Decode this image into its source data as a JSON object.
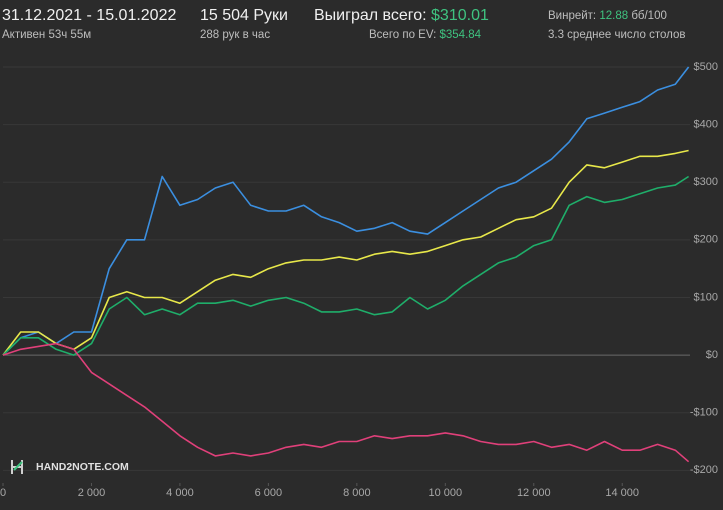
{
  "header": {
    "period": "31.12.2021 - 15.01.2022",
    "active": "Активен 53ч 55м",
    "hands": "15 504 Руки",
    "hands_per_hour": "288 рук в час",
    "won_label": "Выиграл всего:",
    "won_value": "$310.01",
    "ev_label": "Всего по EV:",
    "ev_value": "$354.84",
    "winrate_label": "Винрейт:",
    "winrate_value": "12.88",
    "winrate_unit": "бб/100",
    "tables": "3.3 среднее число столов",
    "logo": "HAND2NOTE.COM"
  },
  "chart_data": {
    "type": "line",
    "x": [
      0,
      400,
      800,
      1200,
      1600,
      2000,
      2400,
      2800,
      3200,
      3600,
      4000,
      4400,
      4800,
      5200,
      5600,
      6000,
      6400,
      6800,
      7200,
      7600,
      8000,
      8400,
      8800,
      9200,
      9600,
      10000,
      10400,
      10800,
      11200,
      11600,
      12000,
      12400,
      12800,
      13200,
      13600,
      14000,
      14400,
      14800,
      15200,
      15500
    ],
    "series": [
      {
        "color": "#3b8fe0",
        "values": [
          0,
          30,
          40,
          20,
          40,
          40,
          150,
          200,
          200,
          310,
          260,
          270,
          290,
          300,
          260,
          250,
          250,
          260,
          240,
          230,
          215,
          220,
          230,
          215,
          210,
          230,
          250,
          270,
          290,
          300,
          320,
          340,
          370,
          410,
          420,
          430,
          440,
          460,
          470,
          500
        ]
      },
      {
        "color": "#e8e84a",
        "values": [
          0,
          40,
          40,
          20,
          10,
          30,
          100,
          110,
          100,
          100,
          90,
          110,
          130,
          140,
          135,
          150,
          160,
          165,
          165,
          170,
          165,
          175,
          180,
          175,
          180,
          190,
          200,
          205,
          220,
          235,
          240,
          255,
          300,
          330,
          325,
          335,
          345,
          345,
          350,
          355
        ]
      },
      {
        "color": "#1fae6a",
        "values": [
          0,
          30,
          30,
          10,
          0,
          20,
          80,
          100,
          70,
          80,
          70,
          90,
          90,
          95,
          85,
          95,
          100,
          90,
          75,
          75,
          80,
          70,
          75,
          100,
          80,
          95,
          120,
          140,
          160,
          170,
          190,
          200,
          260,
          275,
          265,
          270,
          280,
          290,
          295,
          310
        ]
      },
      {
        "color": "#e0407a",
        "values": [
          0,
          10,
          15,
          20,
          10,
          -30,
          -50,
          -70,
          -90,
          -115,
          -140,
          -160,
          -175,
          -170,
          -175,
          -170,
          -160,
          -155,
          -160,
          -150,
          -150,
          -140,
          -145,
          -140,
          -140,
          -135,
          -140,
          -150,
          -155,
          -155,
          -150,
          -160,
          -155,
          -165,
          -150,
          -165,
          -165,
          -155,
          -165,
          -185
        ]
      }
    ],
    "xlim": [
      0,
      15600
    ],
    "ylim": [
      -222,
      526
    ],
    "xticks": [
      0,
      {
        "value": 2000,
        "label": "2 000"
      },
      {
        "value": 4000,
        "label": "4 000"
      },
      {
        "value": 6000,
        "label": "6 000"
      },
      {
        "value": 8000,
        "label": "8 000"
      },
      {
        "value": 10000,
        "label": "10 000"
      },
      {
        "value": 12000,
        "label": "12 000"
      },
      {
        "value": 14000,
        "label": "14 000"
      }
    ],
    "yticks": [
      {
        "value": 500,
        "label": "$500"
      },
      {
        "value": 400,
        "label": "$400"
      },
      {
        "value": 300,
        "label": "$300"
      },
      {
        "value": 200,
        "label": "$200"
      },
      {
        "value": 100,
        "label": "$100"
      },
      {
        "value": 0,
        "label": "$0"
      },
      {
        "value": -100,
        "label": "-$100"
      },
      {
        "value": -200,
        "label": "-$200"
      }
    ],
    "grid": true
  }
}
